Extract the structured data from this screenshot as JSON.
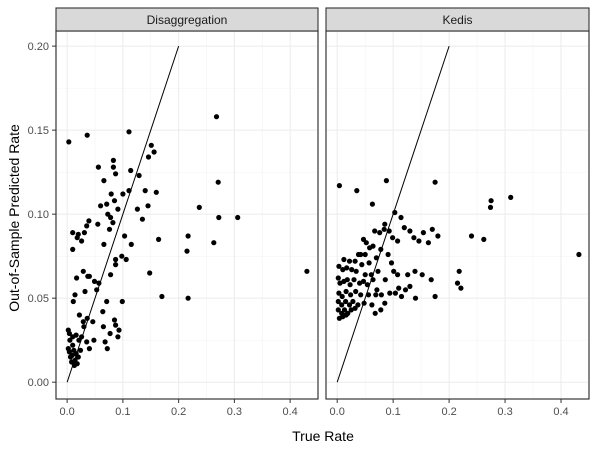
{
  "chart_data": {
    "type": "scatter",
    "xlabel": "True Rate",
    "ylabel": "Out-of-Sample Predicted Rate",
    "xlim": [
      -0.02,
      0.45
    ],
    "ylim": [
      -0.01,
      0.209
    ],
    "x_ticks": [
      "0.0",
      "0.1",
      "0.2",
      "0.3",
      "0.4"
    ],
    "y_ticks": [
      "0.00",
      "0.05",
      "0.10",
      "0.15",
      "0.20"
    ],
    "x_tick_values": [
      0,
      0.1,
      0.2,
      0.3,
      0.4
    ],
    "y_tick_values": [
      0,
      0.05,
      0.1,
      0.15,
      0.2
    ],
    "grid": true,
    "reference_line": {
      "x": [
        0,
        0.2
      ],
      "y": [
        0,
        0.2
      ]
    },
    "panels": [
      {
        "title": "Disaggregation",
        "points": [
          [
            0.003,
            0.143
          ],
          [
            0.036,
            0.147
          ],
          [
            0.111,
            0.149
          ],
          [
            0.268,
            0.158
          ],
          [
            0.151,
            0.141
          ],
          [
            0.156,
            0.137
          ],
          [
            0.146,
            0.134
          ],
          [
            0.056,
            0.128
          ],
          [
            0.083,
            0.128
          ],
          [
            0.083,
            0.132
          ],
          [
            0.087,
            0.124
          ],
          [
            0.114,
            0.126
          ],
          [
            0.066,
            0.12
          ],
          [
            0.111,
            0.114
          ],
          [
            0.129,
            0.123
          ],
          [
            0.16,
            0.113
          ],
          [
            0.271,
            0.119
          ],
          [
            0.14,
            0.114
          ],
          [
            0.145,
            0.105
          ],
          [
            0.079,
            0.112
          ],
          [
            0.085,
            0.108
          ],
          [
            0.1,
            0.112
          ],
          [
            0.071,
            0.106
          ],
          [
            0.06,
            0.105
          ],
          [
            0.091,
            0.103
          ],
          [
            0.126,
            0.103
          ],
          [
            0.135,
            0.097
          ],
          [
            0.055,
            0.094
          ],
          [
            0.078,
            0.098
          ],
          [
            0.082,
            0.095
          ],
          [
            0.076,
            0.091
          ],
          [
            0.039,
            0.096
          ],
          [
            0.035,
            0.093
          ],
          [
            0.031,
            0.089
          ],
          [
            0.01,
            0.089
          ],
          [
            0.02,
            0.088
          ],
          [
            0.026,
            0.084
          ],
          [
            0.018,
            0.086
          ],
          [
            0.073,
            0.1
          ],
          [
            0.237,
            0.104
          ],
          [
            0.306,
            0.098
          ],
          [
            0.272,
            0.098
          ],
          [
            0.217,
            0.087
          ],
          [
            0.263,
            0.083
          ],
          [
            0.164,
            0.085
          ],
          [
            0.115,
            0.082
          ],
          [
            0.103,
            0.087
          ],
          [
            0.066,
            0.082
          ],
          [
            0.01,
            0.079
          ],
          [
            0.215,
            0.078
          ],
          [
            0.098,
            0.075
          ],
          [
            0.087,
            0.073
          ],
          [
            0.106,
            0.073
          ],
          [
            0.087,
            0.07
          ],
          [
            0.148,
            0.065
          ],
          [
            0.029,
            0.066
          ],
          [
            0.017,
            0.062
          ],
          [
            0.037,
            0.063
          ],
          [
            0.04,
            0.063
          ],
          [
            0.049,
            0.06
          ],
          [
            0.053,
            0.055
          ],
          [
            0.057,
            0.059
          ],
          [
            0.078,
            0.064
          ],
          [
            0.032,
            0.054
          ],
          [
            0.014,
            0.052
          ],
          [
            0.099,
            0.048
          ],
          [
            0.071,
            0.048
          ],
          [
            0.011,
            0.048
          ],
          [
            0.17,
            0.051
          ],
          [
            0.217,
            0.05
          ],
          [
            0.43,
            0.066
          ],
          [
            0.022,
            0.04
          ],
          [
            0.029,
            0.036
          ],
          [
            0.036,
            0.038
          ],
          [
            0.046,
            0.036
          ],
          [
            0.064,
            0.042
          ],
          [
            0.065,
            0.033
          ],
          [
            0.085,
            0.037
          ],
          [
            0.087,
            0.034
          ],
          [
            0.093,
            0.031
          ],
          [
            0.068,
            0.024
          ],
          [
            0.077,
            0.029
          ],
          [
            0.091,
            0.027
          ],
          [
            0.072,
            0.02
          ],
          [
            0.002,
            0.031
          ],
          [
            0.004,
            0.029
          ],
          [
            0.01,
            0.027
          ],
          [
            0.016,
            0.028
          ],
          [
            0.021,
            0.025
          ],
          [
            0.026,
            0.027
          ],
          [
            0.03,
            0.033
          ],
          [
            0.035,
            0.024
          ],
          [
            0.048,
            0.025
          ],
          [
            0.002,
            0.02
          ],
          [
            0.004,
            0.018
          ],
          [
            0.006,
            0.015
          ],
          [
            0.008,
            0.012
          ],
          [
            0.01,
            0.022
          ],
          [
            0.012,
            0.019
          ],
          [
            0.014,
            0.013
          ],
          [
            0.016,
            0.017
          ],
          [
            0.018,
            0.011
          ],
          [
            0.02,
            0.015
          ],
          [
            0.024,
            0.019
          ],
          [
            0.005,
            0.025
          ],
          [
            0.009,
            0.016
          ],
          [
            0.013,
            0.01
          ],
          [
            0.04,
            0.02
          ]
        ]
      },
      {
        "title": "Kedis",
        "points": [
          [
            0.004,
            0.117
          ],
          [
            0.035,
            0.114
          ],
          [
            0.088,
            0.12
          ],
          [
            0.175,
            0.119
          ],
          [
            0.31,
            0.11
          ],
          [
            0.275,
            0.108
          ],
          [
            0.274,
            0.104
          ],
          [
            0.063,
            0.106
          ],
          [
            0.103,
            0.101
          ],
          [
            0.114,
            0.098
          ],
          [
            0.085,
            0.094
          ],
          [
            0.067,
            0.09
          ],
          [
            0.076,
            0.089
          ],
          [
            0.084,
            0.091
          ],
          [
            0.093,
            0.09
          ],
          [
            0.12,
            0.092
          ],
          [
            0.13,
            0.09
          ],
          [
            0.137,
            0.086
          ],
          [
            0.154,
            0.089
          ],
          [
            0.17,
            0.091
          ],
          [
            0.18,
            0.087
          ],
          [
            0.099,
            0.086
          ],
          [
            0.108,
            0.084
          ],
          [
            0.146,
            0.084
          ],
          [
            0.163,
            0.083
          ],
          [
            0.24,
            0.087
          ],
          [
            0.262,
            0.085
          ],
          [
            0.052,
            0.083
          ],
          [
            0.047,
            0.085
          ],
          [
            0.064,
            0.081
          ],
          [
            0.078,
            0.079
          ],
          [
            0.042,
            0.076
          ],
          [
            0.038,
            0.076
          ],
          [
            0.05,
            0.076
          ],
          [
            0.058,
            0.08
          ],
          [
            0.432,
            0.076
          ],
          [
            0.012,
            0.073
          ],
          [
            0.022,
            0.072
          ],
          [
            0.032,
            0.072
          ],
          [
            0.044,
            0.07
          ],
          [
            0.057,
            0.071
          ],
          [
            0.07,
            0.074
          ],
          [
            0.091,
            0.076
          ],
          [
            0.097,
            0.071
          ],
          [
            0.003,
            0.069
          ],
          [
            0.01,
            0.067
          ],
          [
            0.017,
            0.068
          ],
          [
            0.026,
            0.067
          ],
          [
            0.034,
            0.066
          ],
          [
            0.05,
            0.064
          ],
          [
            0.061,
            0.064
          ],
          [
            0.073,
            0.066
          ],
          [
            0.101,
            0.066
          ],
          [
            0.108,
            0.064
          ],
          [
            0.126,
            0.064
          ],
          [
            0.139,
            0.066
          ],
          [
            0.152,
            0.064
          ],
          [
            0.168,
            0.061
          ],
          [
            0.218,
            0.066
          ],
          [
            0.002,
            0.062
          ],
          [
            0.005,
            0.059
          ],
          [
            0.012,
            0.06
          ],
          [
            0.018,
            0.061
          ],
          [
            0.023,
            0.058
          ],
          [
            0.03,
            0.061
          ],
          [
            0.04,
            0.059
          ],
          [
            0.047,
            0.06
          ],
          [
            0.054,
            0.058
          ],
          [
            0.064,
            0.061
          ],
          [
            0.071,
            0.055
          ],
          [
            0.086,
            0.061
          ],
          [
            0.11,
            0.056
          ],
          [
            0.122,
            0.055
          ],
          [
            0.13,
            0.057
          ],
          [
            0.215,
            0.059
          ],
          [
            0.221,
            0.056
          ],
          [
            0.003,
            0.053
          ],
          [
            0.009,
            0.051
          ],
          [
            0.016,
            0.054
          ],
          [
            0.024,
            0.052
          ],
          [
            0.033,
            0.054
          ],
          [
            0.042,
            0.052
          ],
          [
            0.056,
            0.052
          ],
          [
            0.069,
            0.052
          ],
          [
            0.079,
            0.052
          ],
          [
            0.094,
            0.053
          ],
          [
            0.104,
            0.053
          ],
          [
            0.115,
            0.051
          ],
          [
            0.14,
            0.05
          ],
          [
            0.175,
            0.051
          ],
          [
            0.002,
            0.048
          ],
          [
            0.008,
            0.046
          ],
          [
            0.015,
            0.048
          ],
          [
            0.022,
            0.046
          ],
          [
            0.028,
            0.048
          ],
          [
            0.037,
            0.046
          ],
          [
            0.048,
            0.047
          ],
          [
            0.062,
            0.046
          ],
          [
            0.085,
            0.047
          ],
          [
            0.002,
            0.043
          ],
          [
            0.008,
            0.041
          ],
          [
            0.013,
            0.043
          ],
          [
            0.019,
            0.041
          ],
          [
            0.025,
            0.043
          ],
          [
            0.032,
            0.044
          ],
          [
            0.004,
            0.038
          ],
          [
            0.01,
            0.039
          ],
          [
            0.016,
            0.04
          ],
          [
            0.068,
            0.041
          ],
          [
            0.078,
            0.043
          ]
        ]
      }
    ]
  }
}
